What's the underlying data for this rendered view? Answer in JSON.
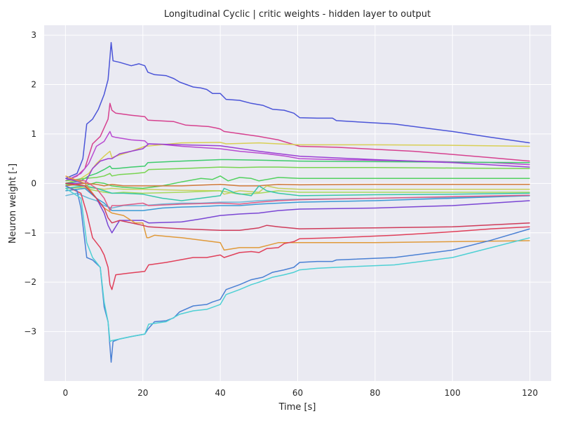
{
  "chart_data": {
    "type": "line",
    "title": "Longitudinal Cyclic | critic weights - hidden layer to output",
    "xlabel": "Time [s]",
    "ylabel": "Neuron weight [-]",
    "xlim": [
      -5.5,
      125.5
    ],
    "ylim": [
      -4.0,
      3.2
    ],
    "xticks": [
      0,
      20,
      40,
      60,
      80,
      100,
      120
    ],
    "xtick_labels": [
      "0",
      "20",
      "40",
      "60",
      "80",
      "100",
      "120"
    ],
    "yticks": [
      -3,
      -2,
      -1,
      0,
      1,
      2,
      3
    ],
    "ytick_labels": [
      "−3",
      "−2",
      "−1",
      "0",
      "1",
      "2",
      "3"
    ],
    "grid": true,
    "background": "#eaeaf2",
    "series": [
      {
        "color": "#4b55d8",
        "x": [
          0,
          3,
          4.5,
          5.5,
          7,
          8.5,
          10,
          11,
          11.5,
          11.8,
          12.3,
          14,
          17,
          19,
          20.5,
          21.3,
          23,
          26,
          28,
          29.5,
          33,
          35,
          36.5,
          38,
          40,
          41.5,
          45,
          48,
          51,
          53.5,
          56.5,
          59,
          60.5,
          65,
          69,
          70,
          85,
          100,
          110,
          120
        ],
        "y": [
          0.1,
          0.2,
          0.5,
          1.2,
          1.3,
          1.5,
          1.8,
          2.1,
          2.55,
          2.85,
          2.48,
          2.45,
          2.38,
          2.42,
          2.38,
          2.25,
          2.2,
          2.18,
          2.12,
          2.05,
          1.95,
          1.93,
          1.9,
          1.82,
          1.82,
          1.7,
          1.68,
          1.62,
          1.58,
          1.5,
          1.48,
          1.42,
          1.33,
          1.32,
          1.32,
          1.27,
          1.2,
          1.05,
          0.93,
          0.82
        ]
      },
      {
        "color": "#d6418f",
        "x": [
          0,
          3,
          5,
          7,
          9,
          11,
          11.5,
          12,
          13,
          17,
          20.5,
          21.3,
          28,
          31,
          37,
          39,
          40,
          41,
          50,
          55,
          60.5,
          70,
          90,
          110,
          120
        ],
        "y": [
          0.05,
          0.15,
          0.3,
          0.8,
          0.95,
          1.3,
          1.62,
          1.48,
          1.42,
          1.38,
          1.35,
          1.28,
          1.25,
          1.18,
          1.15,
          1.12,
          1.1,
          1.05,
          0.95,
          0.88,
          0.75,
          0.73,
          0.65,
          0.52,
          0.45
        ]
      },
      {
        "color": "#b84ad1",
        "x": [
          0,
          4,
          6,
          8,
          10,
          11.5,
          12,
          13,
          17,
          20.5,
          21.3,
          26,
          30,
          36,
          40,
          45,
          52,
          57,
          60.5,
          70,
          90,
          110,
          120
        ],
        "y": [
          0.05,
          0.2,
          0.4,
          0.75,
          0.85,
          1.05,
          0.95,
          0.93,
          0.88,
          0.86,
          0.8,
          0.78,
          0.75,
          0.72,
          0.7,
          0.65,
          0.6,
          0.55,
          0.5,
          0.48,
          0.45,
          0.42,
          0.38
        ]
      },
      {
        "color": "#d8cf55",
        "x": [
          0,
          4,
          6,
          8,
          10,
          11.5,
          12,
          13,
          17,
          20.5,
          30,
          40,
          41.5,
          50,
          55,
          60.5,
          80,
          100,
          120
        ],
        "y": [
          0.0,
          0.1,
          0.2,
          0.4,
          0.55,
          0.65,
          0.52,
          0.55,
          0.65,
          0.75,
          0.82,
          0.83,
          0.8,
          0.82,
          0.8,
          0.78,
          0.78,
          0.77,
          0.75
        ]
      },
      {
        "color": "#3ecb6c",
        "x": [
          0,
          4,
          6,
          8,
          10,
          11.5,
          12,
          13,
          17,
          20.5,
          21.3,
          30,
          40,
          42,
          50,
          60.5,
          80,
          100,
          120
        ],
        "y": [
          0.0,
          0.05,
          0.15,
          0.2,
          0.28,
          0.35,
          0.3,
          0.3,
          0.33,
          0.35,
          0.42,
          0.45,
          0.48,
          0.48,
          0.47,
          0.45,
          0.44,
          0.43,
          0.42
        ]
      },
      {
        "color": "#78d450",
        "x": [
          0,
          5,
          8,
          10,
          11.5,
          12,
          14,
          18,
          20.5,
          21.5,
          30,
          40,
          45,
          50,
          55,
          60.5,
          80,
          100,
          120
        ],
        "y": [
          0.05,
          0.1,
          0.12,
          0.15,
          0.2,
          0.15,
          0.18,
          0.2,
          0.22,
          0.28,
          0.3,
          0.33,
          0.32,
          0.33,
          0.33,
          0.32,
          0.32,
          0.31,
          0.3
        ]
      },
      {
        "color": "#9b3fd4",
        "x": [
          0,
          5,
          7,
          9,
          11,
          12,
          14,
          20,
          21.5,
          30,
          40,
          50,
          60.5,
          80,
          100,
          120
        ],
        "y": [
          0.0,
          0.0,
          0.3,
          0.45,
          0.5,
          0.5,
          0.6,
          0.7,
          0.8,
          0.78,
          0.76,
          0.65,
          0.55,
          0.48,
          0.42,
          0.33
        ]
      },
      {
        "color": "#52d15f",
        "x": [
          0,
          5,
          8,
          10,
          12,
          15,
          20,
          25,
          30,
          35,
          38,
          40,
          42,
          45,
          48,
          50,
          55,
          60.5,
          80,
          100,
          120
        ],
        "y": [
          -0.02,
          -0.05,
          0.02,
          0.0,
          -0.05,
          -0.08,
          -0.1,
          -0.05,
          0.03,
          0.1,
          0.08,
          0.15,
          0.05,
          0.12,
          0.1,
          0.05,
          0.12,
          0.1,
          0.1,
          0.1,
          0.1
        ]
      },
      {
        "color": "#d17a3a",
        "x": [
          0,
          5,
          8,
          10,
          12,
          15,
          20,
          30,
          40,
          45,
          50,
          55,
          60.5,
          80,
          100,
          120
        ],
        "y": [
          -0.05,
          0.0,
          -0.02,
          -0.05,
          -0.02,
          -0.05,
          -0.05,
          -0.05,
          -0.02,
          -0.05,
          -0.05,
          -0.02,
          -0.03,
          -0.02,
          -0.02,
          -0.02
        ]
      },
      {
        "color": "#c8d05e",
        "x": [
          0,
          5,
          8,
          10,
          12,
          15,
          20,
          30,
          40,
          41,
          45,
          50,
          52,
          55,
          60.5,
          80,
          100,
          120
        ],
        "y": [
          -0.1,
          -0.08,
          -0.1,
          -0.12,
          -0.1,
          -0.12,
          -0.12,
          -0.14,
          -0.15,
          -0.22,
          -0.15,
          -0.18,
          -0.05,
          -0.1,
          -0.12,
          -0.12,
          -0.12,
          -0.12
        ]
      },
      {
        "color": "#a8d95c",
        "x": [
          0,
          5,
          8,
          10,
          12,
          15,
          20,
          30,
          40,
          45,
          50,
          55,
          60.5,
          80,
          100,
          120
        ],
        "y": [
          -0.15,
          -0.1,
          -0.15,
          -0.18,
          -0.2,
          -0.18,
          -0.2,
          -0.18,
          -0.15,
          -0.22,
          -0.2,
          -0.15,
          -0.18,
          -0.18,
          -0.18,
          -0.18
        ]
      },
      {
        "color": "#37c6a8",
        "x": [
          0,
          5,
          8,
          10,
          12,
          15,
          20,
          25,
          30,
          35,
          40,
          41,
          44,
          48,
          50,
          52,
          55,
          60.5,
          80,
          100,
          120
        ],
        "y": [
          -0.1,
          -0.05,
          -0.1,
          -0.15,
          -0.2,
          -0.2,
          -0.22,
          -0.3,
          -0.35,
          -0.3,
          -0.25,
          -0.1,
          -0.2,
          -0.25,
          -0.05,
          -0.15,
          -0.2,
          -0.25,
          -0.23,
          -0.22,
          -0.2
        ]
      },
      {
        "color": "#6bb8d8",
        "x": [
          0,
          3,
          6,
          8,
          10,
          12,
          15,
          20,
          25,
          30,
          35,
          40,
          45,
          50,
          55,
          60.5,
          80,
          100,
          120
        ],
        "y": [
          -0.25,
          -0.2,
          -0.3,
          -0.35,
          -0.45,
          -0.5,
          -0.45,
          -0.45,
          -0.42,
          -0.4,
          -0.4,
          -0.38,
          -0.38,
          -0.35,
          -0.33,
          -0.32,
          -0.3,
          -0.28,
          -0.25
        ]
      },
      {
        "color": "#3b9ad4",
        "x": [
          0,
          5,
          8,
          10,
          12,
          15,
          20,
          25,
          30,
          35,
          40,
          45,
          50,
          55,
          60.5,
          80,
          100,
          120
        ],
        "y": [
          -0.15,
          -0.1,
          -0.3,
          -0.4,
          -0.55,
          -0.55,
          -0.55,
          -0.5,
          -0.48,
          -0.47,
          -0.45,
          -0.45,
          -0.42,
          -0.4,
          -0.38,
          -0.35,
          -0.3,
          -0.25
        ]
      },
      {
        "color": "#e05c86",
        "x": [
          0,
          5,
          8,
          10,
          11.5,
          12,
          14,
          20,
          21.5,
          30,
          40,
          45,
          50,
          55,
          60.5,
          80,
          100,
          120
        ],
        "y": [
          0.1,
          0.05,
          -0.1,
          -0.3,
          -0.55,
          -0.45,
          -0.45,
          -0.4,
          -0.45,
          -0.42,
          -0.4,
          -0.42,
          -0.38,
          -0.35,
          -0.33,
          -0.3,
          -0.27,
          -0.24
        ]
      },
      {
        "color": "#7a46d4",
        "x": [
          0,
          5,
          8,
          10,
          11,
          12,
          14,
          20,
          21.5,
          30,
          35,
          40,
          45,
          50,
          55,
          60.5,
          80,
          100,
          120
        ],
        "y": [
          0.1,
          0.0,
          -0.3,
          -0.6,
          -0.85,
          -1.0,
          -0.75,
          -0.75,
          -0.8,
          -0.78,
          -0.72,
          -0.65,
          -0.62,
          -0.6,
          -0.55,
          -0.52,
          -0.5,
          -0.45,
          -0.35
        ]
      },
      {
        "color": "#e09a3a",
        "x": [
          0,
          5,
          8,
          10,
          12,
          15,
          18,
          20,
          21,
          21.5,
          23,
          30,
          35,
          40,
          41,
          45,
          50,
          55,
          60.5,
          80,
          100,
          120
        ],
        "y": [
          0.15,
          0.0,
          -0.3,
          -0.5,
          -0.6,
          -0.65,
          -0.8,
          -0.8,
          -1.1,
          -1.1,
          -1.05,
          -1.1,
          -1.15,
          -1.2,
          -1.35,
          -1.3,
          -1.3,
          -1.2,
          -1.2,
          -1.2,
          -1.18,
          -1.16
        ]
      },
      {
        "color": "#cf3c5a",
        "x": [
          0,
          5,
          8,
          10,
          11,
          12,
          14,
          20,
          21.5,
          30,
          40,
          45,
          50,
          52,
          55,
          60.5,
          80,
          100,
          120
        ],
        "y": [
          0.0,
          -0.05,
          -0.3,
          -0.5,
          -0.7,
          -0.8,
          -0.75,
          -0.85,
          -0.88,
          -0.92,
          -0.95,
          -0.95,
          -0.9,
          -0.85,
          -0.88,
          -0.92,
          -0.9,
          -0.88,
          -0.8
        ]
      },
      {
        "color": "#e0405a",
        "x": [
          0,
          4,
          5.5,
          7,
          9,
          10,
          11,
          11.5,
          12,
          13,
          16,
          20.5,
          21.5,
          26,
          29.5,
          33,
          36.5,
          40,
          41,
          45,
          48,
          50,
          52,
          55,
          56.5,
          59,
          60.5,
          70,
          85,
          100,
          110,
          120
        ],
        "y": [
          -0.05,
          -0.2,
          -0.6,
          -1.1,
          -1.3,
          -1.45,
          -1.7,
          -2.05,
          -2.15,
          -1.85,
          -1.82,
          -1.78,
          -1.65,
          -1.6,
          -1.55,
          -1.5,
          -1.5,
          -1.45,
          -1.5,
          -1.4,
          -1.38,
          -1.4,
          -1.32,
          -1.3,
          -1.22,
          -1.18,
          -1.12,
          -1.1,
          -1.05,
          -0.98,
          -0.92,
          -0.88
        ]
      },
      {
        "color": "#4a80d4",
        "x": [
          0,
          3,
          4,
          5.5,
          7,
          9,
          10,
          11,
          11.5,
          11.8,
          12.3,
          14,
          17,
          20.5,
          21.3,
          23,
          26,
          28,
          29.5,
          33,
          36.5,
          38,
          40,
          41.5,
          45,
          48,
          51,
          53.5,
          56.5,
          59,
          60.5,
          65,
          69,
          70,
          85,
          100,
          110,
          120
        ],
        "y": [
          -0.05,
          -0.15,
          -0.5,
          -1.5,
          -1.55,
          -1.7,
          -2.5,
          -2.8,
          -3.3,
          -3.62,
          -3.2,
          -3.15,
          -3.1,
          -3.05,
          -2.95,
          -2.8,
          -2.78,
          -2.72,
          -2.6,
          -2.48,
          -2.45,
          -2.4,
          -2.35,
          -2.15,
          -2.05,
          -1.95,
          -1.9,
          -1.8,
          -1.75,
          -1.7,
          -1.6,
          -1.58,
          -1.58,
          -1.55,
          -1.5,
          -1.35,
          -1.15,
          -0.92
        ]
      },
      {
        "color": "#4ed0d4",
        "x": [
          0,
          4,
          5.5,
          7,
          9,
          10,
          11,
          11.5,
          12,
          14,
          17,
          20.5,
          21.5,
          26,
          29.5,
          33,
          36.5,
          40,
          41.5,
          45,
          48,
          50,
          53.5,
          56.5,
          59,
          60.5,
          65,
          70,
          85,
          100,
          110,
          120
        ],
        "y": [
          -0.1,
          -0.3,
          -1.2,
          -1.5,
          -1.7,
          -2.4,
          -2.8,
          -3.2,
          -3.18,
          -3.15,
          -3.1,
          -3.05,
          -2.85,
          -2.8,
          -2.65,
          -2.58,
          -2.55,
          -2.45,
          -2.25,
          -2.15,
          -2.05,
          -2.0,
          -1.9,
          -1.85,
          -1.8,
          -1.75,
          -1.72,
          -1.7,
          -1.65,
          -1.5,
          -1.3,
          -1.1
        ]
      }
    ]
  }
}
